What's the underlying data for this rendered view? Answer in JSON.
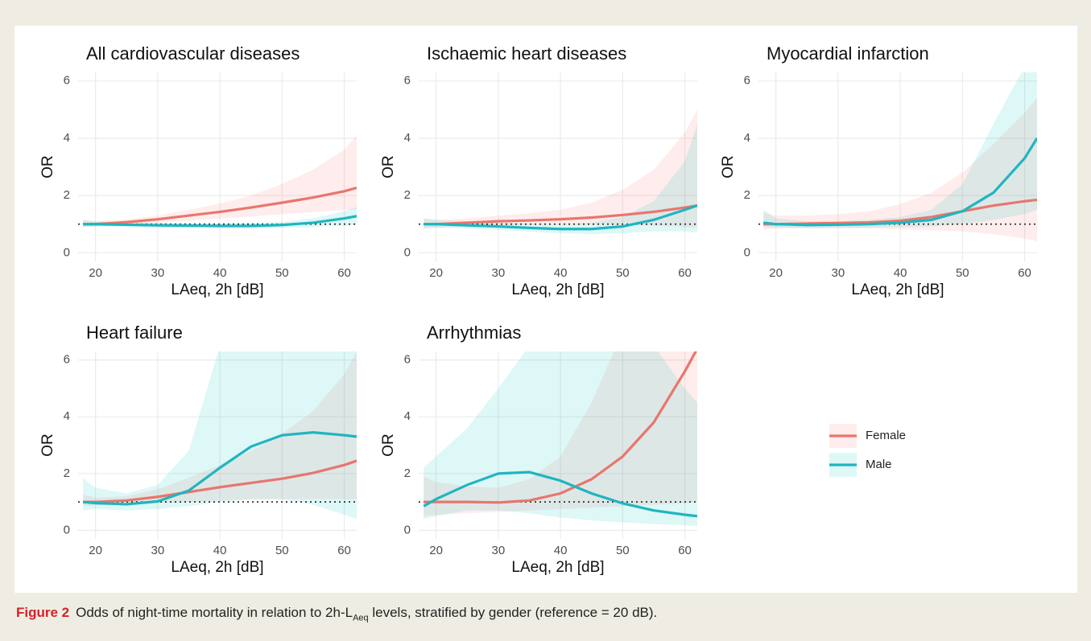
{
  "chart_data": [
    {
      "type": "line",
      "title": "All cardiovascular diseases",
      "xlabel": "LAeq, 2h [dB]",
      "ylabel": "OR",
      "x": [
        18,
        20,
        25,
        30,
        35,
        40,
        45,
        50,
        55,
        60,
        62
      ],
      "xlim": [
        17.2,
        62
      ],
      "xticks": [
        20,
        30,
        40,
        50,
        60
      ],
      "ylim": [
        -0.3,
        6.3
      ],
      "yticks": [
        0,
        2,
        4,
        6
      ],
      "grid": true,
      "reference_line": 1,
      "series": [
        {
          "name": "Female",
          "color": "#e8766d",
          "band_color": "#f8766d",
          "values": [
            1.0,
            1.0,
            1.07,
            1.17,
            1.3,
            1.43,
            1.58,
            1.75,
            1.93,
            2.15,
            2.27
          ],
          "lower": [
            0.9,
            0.92,
            0.98,
            1.05,
            1.12,
            1.2,
            1.27,
            1.35,
            1.42,
            1.5,
            1.52
          ],
          "upper": [
            1.15,
            1.1,
            1.17,
            1.3,
            1.5,
            1.72,
            2.0,
            2.4,
            2.9,
            3.6,
            4.1
          ]
        },
        {
          "name": "Male",
          "color": "#1fb5bf",
          "band_color": "#00bfc4",
          "values": [
            1.0,
            1.0,
            0.98,
            0.96,
            0.95,
            0.94,
            0.94,
            0.97,
            1.05,
            1.2,
            1.28
          ],
          "lower": [
            0.9,
            0.92,
            0.9,
            0.88,
            0.87,
            0.86,
            0.86,
            0.87,
            0.9,
            0.95,
            0.98
          ],
          "upper": [
            1.15,
            1.1,
            1.07,
            1.05,
            1.04,
            1.03,
            1.04,
            1.08,
            1.2,
            1.45,
            1.6
          ]
        }
      ]
    },
    {
      "type": "line",
      "title": "Ischaemic heart diseases",
      "xlabel": "LAeq, 2h [dB]",
      "ylabel": "OR",
      "x": [
        18,
        20,
        25,
        30,
        35,
        40,
        45,
        50,
        55,
        60,
        62
      ],
      "xlim": [
        17.2,
        62
      ],
      "xticks": [
        20,
        30,
        40,
        50,
        60
      ],
      "ylim": [
        -0.3,
        6.3
      ],
      "yticks": [
        0,
        2,
        4,
        6
      ],
      "grid": true,
      "reference_line": 1,
      "series": [
        {
          "name": "Female",
          "color": "#e8766d",
          "band_color": "#f8766d",
          "values": [
            1.0,
            1.0,
            1.05,
            1.1,
            1.13,
            1.17,
            1.23,
            1.32,
            1.43,
            1.58,
            1.65
          ],
          "lower": [
            0.85,
            0.88,
            0.92,
            0.95,
            0.97,
            0.98,
            0.98,
            0.97,
            0.95,
            0.9,
            0.88
          ],
          "upper": [
            1.2,
            1.15,
            1.2,
            1.3,
            1.38,
            1.5,
            1.75,
            2.2,
            2.9,
            4.2,
            5.0
          ]
        },
        {
          "name": "Male",
          "color": "#1fb5bf",
          "band_color": "#00bfc4",
          "values": [
            1.0,
            1.0,
            0.96,
            0.92,
            0.87,
            0.83,
            0.83,
            0.92,
            1.15,
            1.5,
            1.65
          ],
          "lower": [
            0.85,
            0.88,
            0.85,
            0.8,
            0.74,
            0.68,
            0.65,
            0.68,
            0.75,
            0.75,
            0.7
          ],
          "upper": [
            1.2,
            1.15,
            1.1,
            1.06,
            1.02,
            1.0,
            1.05,
            1.25,
            1.8,
            3.2,
            4.5
          ]
        }
      ]
    },
    {
      "type": "line",
      "title": "Myocardial infarction",
      "xlabel": "LAeq, 2h [dB]",
      "ylabel": "OR",
      "x": [
        18,
        20,
        25,
        30,
        35,
        40,
        45,
        50,
        55,
        60,
        62
      ],
      "xlim": [
        17.2,
        62
      ],
      "xticks": [
        20,
        30,
        40,
        50,
        60
      ],
      "ylim": [
        -0.3,
        6.3
      ],
      "yticks": [
        0,
        2,
        4,
        6
      ],
      "grid": true,
      "reference_line": 1,
      "series": [
        {
          "name": "Female",
          "color": "#e8766d",
          "band_color": "#f8766d",
          "values": [
            1.0,
            1.0,
            1.02,
            1.04,
            1.06,
            1.12,
            1.25,
            1.45,
            1.65,
            1.8,
            1.85
          ],
          "lower": [
            0.8,
            0.85,
            0.86,
            0.86,
            0.85,
            0.82,
            0.8,
            0.75,
            0.65,
            0.5,
            0.4
          ],
          "upper": [
            1.4,
            1.3,
            1.3,
            1.35,
            1.45,
            1.7,
            2.1,
            2.8,
            3.8,
            4.9,
            5.4
          ]
        },
        {
          "name": "Male",
          "color": "#1fb5bf",
          "band_color": "#00bfc4",
          "values": [
            1.05,
            1.0,
            0.97,
            0.98,
            1.0,
            1.05,
            1.15,
            1.45,
            2.1,
            3.3,
            4.0
          ],
          "lower": [
            0.9,
            0.88,
            0.86,
            0.87,
            0.88,
            0.9,
            0.92,
            1.0,
            1.15,
            1.35,
            1.5
          ],
          "upper": [
            1.5,
            1.2,
            1.1,
            1.1,
            1.15,
            1.25,
            1.5,
            2.4,
            4.5,
            6.5,
            6.5
          ]
        }
      ]
    },
    {
      "type": "line",
      "title": "Heart failure",
      "xlabel": "LAeq, 2h [dB]",
      "ylabel": "OR",
      "x": [
        18,
        20,
        25,
        30,
        35,
        40,
        45,
        50,
        55,
        60,
        62
      ],
      "xlim": [
        17.2,
        62
      ],
      "xticks": [
        20,
        30,
        40,
        50,
        60
      ],
      "ylim": [
        -0.3,
        6.3
      ],
      "yticks": [
        0,
        2,
        4,
        6
      ],
      "grid": true,
      "reference_line": 1,
      "series": [
        {
          "name": "Female",
          "color": "#e8766d",
          "band_color": "#f8766d",
          "values": [
            1.0,
            1.0,
            1.05,
            1.18,
            1.35,
            1.52,
            1.67,
            1.82,
            2.02,
            2.3,
            2.45
          ],
          "lower": [
            0.85,
            0.88,
            0.9,
            0.95,
            1.0,
            1.05,
            1.08,
            1.1,
            1.1,
            1.1,
            1.1
          ],
          "upper": [
            1.25,
            1.15,
            1.2,
            1.45,
            1.85,
            2.3,
            2.8,
            3.4,
            4.2,
            5.5,
            6.3
          ]
        },
        {
          "name": "Male",
          "color": "#1fb5bf",
          "band_color": "#00bfc4",
          "values": [
            1.0,
            0.96,
            0.92,
            1.02,
            1.4,
            2.2,
            2.95,
            3.35,
            3.45,
            3.35,
            3.3
          ],
          "lower": [
            0.7,
            0.75,
            0.7,
            0.75,
            0.85,
            1.0,
            1.1,
            1.1,
            0.9,
            0.55,
            0.4
          ],
          "upper": [
            1.85,
            1.5,
            1.3,
            1.6,
            2.8,
            6.5,
            7,
            7,
            7,
            7,
            7
          ]
        }
      ]
    },
    {
      "type": "line",
      "title": "Arrhythmias",
      "xlabel": "LAeq, 2h [dB]",
      "ylabel": "OR",
      "x": [
        18,
        20,
        25,
        30,
        35,
        40,
        45,
        50,
        55,
        60,
        62
      ],
      "xlim": [
        17.2,
        62
      ],
      "xticks": [
        20,
        30,
        40,
        50,
        60
      ],
      "ylim": [
        -0.3,
        6.3
      ],
      "yticks": [
        0,
        2,
        4,
        6
      ],
      "grid": true,
      "reference_line": 1,
      "legend": "right",
      "series": [
        {
          "name": "Female",
          "color": "#e8766d",
          "band_color": "#f8766d",
          "values": [
            1.0,
            1.0,
            1.0,
            0.98,
            1.05,
            1.3,
            1.8,
            2.6,
            3.8,
            5.6,
            6.4
          ],
          "lower": [
            0.5,
            0.55,
            0.6,
            0.65,
            0.7,
            0.75,
            0.8,
            0.85,
            0.9,
            0.95,
            1.0
          ],
          "upper": [
            1.9,
            1.7,
            1.55,
            1.5,
            1.8,
            2.6,
            4.5,
            7,
            7,
            7,
            7
          ]
        },
        {
          "name": "Male",
          "color": "#1fb5bf",
          "band_color": "#00bfc4",
          "values": [
            0.85,
            1.1,
            1.6,
            2.0,
            2.05,
            1.75,
            1.3,
            0.95,
            0.7,
            0.55,
            0.5
          ],
          "lower": [
            0.4,
            0.5,
            0.7,
            0.7,
            0.6,
            0.45,
            0.35,
            0.28,
            0.22,
            0.18,
            0.15
          ],
          "upper": [
            2.2,
            2.6,
            3.6,
            5,
            6.5,
            7,
            7,
            7,
            6.5,
            5,
            4.5
          ]
        }
      ]
    }
  ],
  "caption": {
    "label": "Figure 2",
    "text_before": "Odds of night-time mortality in relation to 2h-L",
    "subscript": "Aeq",
    "text_after": " levels, stratified by gender (reference = 20 dB)."
  }
}
